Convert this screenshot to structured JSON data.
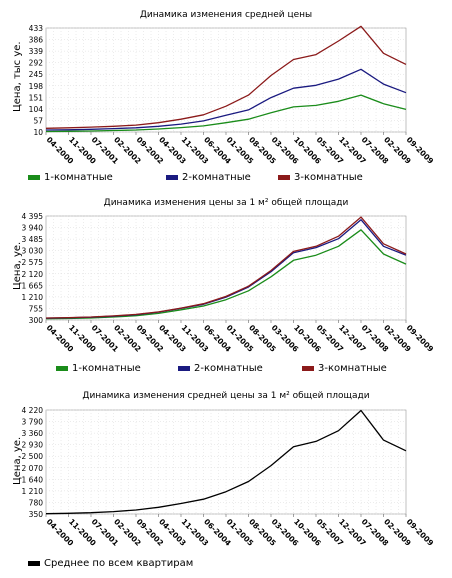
{
  "chart_data": [
    {
      "type": "line",
      "title": "Динамика изменения средней цены",
      "xlabel": "",
      "ylabel": "Цена, тыс уе.",
      "x": [
        "04-2000",
        "11-2000",
        "07-2001",
        "02-2002",
        "09-2002",
        "04-2003",
        "11-2003",
        "06-2004",
        "01-2005",
        "08-2005",
        "03-2006",
        "10-2006",
        "05-2007",
        "12-2007",
        "07-2008",
        "02-2009",
        "09-2009"
      ],
      "yticks": [
        "433",
        "386",
        "339",
        "292",
        "245",
        "198",
        "151",
        "104",
        "57",
        "10"
      ],
      "ylim": [
        10,
        433
      ],
      "grid": true,
      "legend": "bottom",
      "series": [
        {
          "name": "1-комнатные",
          "color": "#1a8c1a",
          "values": [
            12,
            13,
            14,
            16,
            18,
            22,
            28,
            35,
            48,
            62,
            88,
            112,
            118,
            135,
            160,
            125,
            102
          ]
        },
        {
          "name": "2-комнатные",
          "color": "#1a1a80",
          "values": [
            18,
            19,
            21,
            24,
            27,
            33,
            42,
            55,
            78,
            100,
            150,
            188,
            200,
            225,
            265,
            205,
            170
          ]
        },
        {
          "name": "3-комнатные",
          "color": "#8b1a1a",
          "values": [
            25,
            27,
            30,
            33,
            38,
            48,
            62,
            80,
            115,
            160,
            240,
            305,
            325,
            380,
            440,
            330,
            285
          ]
        }
      ]
    },
    {
      "type": "line",
      "title": "Динамика изменения цены за 1 м² общей площади",
      "xlabel": "",
      "ylabel": "Цена, уе.",
      "x": [
        "04-2000",
        "11-2000",
        "07-2001",
        "02-2002",
        "09-2002",
        "04-2003",
        "11-2003",
        "06-2004",
        "01-2005",
        "08-2005",
        "03-2006",
        "10-2006",
        "05-2007",
        "12-2007",
        "07-2008",
        "02-2009",
        "09-2009"
      ],
      "yticks": [
        "4 395",
        "3 940",
        "3 485",
        "3 030",
        "2 575",
        "2 120",
        "1 665",
        "1 210",
        "755",
        "300"
      ],
      "ylim": [
        300,
        4395
      ],
      "grid": true,
      "legend": "bottom",
      "series": [
        {
          "name": "1-комнатные",
          "color": "#1a8c1a",
          "values": [
            350,
            360,
            380,
            420,
            470,
            560,
            700,
            850,
            1100,
            1450,
            2000,
            2650,
            2850,
            3200,
            3850,
            2900,
            2500
          ]
        },
        {
          "name": "2-комнатные",
          "color": "#1a1a80",
          "values": [
            370,
            385,
            410,
            450,
            510,
            610,
            760,
            920,
            1200,
            1600,
            2200,
            2950,
            3150,
            3500,
            4250,
            3200,
            2850
          ]
        },
        {
          "name": "3-комнатные",
          "color": "#8b1a1a",
          "values": [
            380,
            395,
            420,
            460,
            520,
            620,
            770,
            940,
            1230,
            1630,
            2250,
            3000,
            3200,
            3600,
            4350,
            3300,
            2900
          ]
        }
      ]
    },
    {
      "type": "line",
      "title": "Динамика изменения средней цены за 1 м² общей площади",
      "xlabel": "",
      "ylabel": "Цена, уе.",
      "x": [
        "04-2000",
        "11-2000",
        "07-2001",
        "02-2002",
        "09-2002",
        "04-2003",
        "11-2003",
        "06-2004",
        "01-2005",
        "08-2005",
        "03-2006",
        "10-2006",
        "05-2007",
        "12-2007",
        "07-2008",
        "02-2009",
        "09-2009"
      ],
      "yticks": [
        "4 220",
        "3 790",
        "3 360",
        "2 930",
        "2 500",
        "2 070",
        "1 640",
        "1 210",
        "780",
        "350"
      ],
      "ylim": [
        350,
        4220
      ],
      "grid": true,
      "legend": "bottom",
      "series": [
        {
          "name": "Среднее по всем квартирам",
          "color": "#000000",
          "values": [
            360,
            375,
            400,
            440,
            500,
            600,
            740,
            900,
            1180,
            1560,
            2150,
            2850,
            3050,
            3450,
            4200,
            3100,
            2700
          ]
        }
      ]
    }
  ]
}
